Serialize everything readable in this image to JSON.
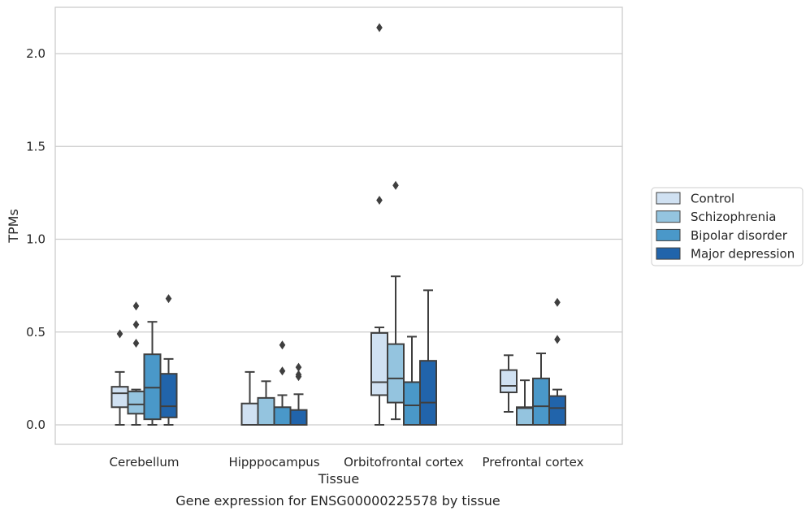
{
  "chart_data": {
    "type": "box",
    "caption": "Gene expression for ENSG00000225578 by tissue",
    "xlabel": "Tissue",
    "ylabel": "TPMs",
    "ylim": [
      -0.1,
      2.25
    ],
    "yticks": [
      0.0,
      0.5,
      1.0,
      1.5,
      2.0
    ],
    "ytick_labels": [
      "0.0",
      "0.5",
      "1.0",
      "1.5",
      "2.0"
    ],
    "grid": "horizontal",
    "legend_position": "right",
    "categories": [
      "Cerebellum",
      "Hipppocampus",
      "Orbitofrontal cortex",
      "Prefrontal cortex"
    ],
    "series": [
      {
        "name": "Control",
        "color": "#d0e1f2",
        "boxes": [
          {
            "whislo": 0.0,
            "q1": 0.095,
            "med": 0.17,
            "q3": 0.205,
            "whishi": 0.285,
            "fliers": [
              0.49
            ]
          },
          {
            "whislo": 0.0,
            "q1": 0.0,
            "med": 0.0,
            "q3": 0.115,
            "whishi": 0.285,
            "fliers": []
          },
          {
            "whislo": 0.0,
            "q1": 0.16,
            "med": 0.23,
            "q3": 0.495,
            "whishi": 0.525,
            "fliers": [
              1.21,
              2.14
            ]
          },
          {
            "whislo": 0.07,
            "q1": 0.175,
            "med": 0.21,
            "q3": 0.295,
            "whishi": 0.375,
            "fliers": []
          }
        ]
      },
      {
        "name": "Schizophrenia",
        "color": "#94c4df",
        "boxes": [
          {
            "whislo": 0.0,
            "q1": 0.06,
            "med": 0.11,
            "q3": 0.18,
            "whishi": 0.19,
            "fliers": [
              0.44,
              0.54,
              0.64
            ]
          },
          {
            "whislo": 0.0,
            "q1": 0.0,
            "med": 0.0,
            "q3": 0.145,
            "whishi": 0.235,
            "fliers": []
          },
          {
            "whislo": 0.03,
            "q1": 0.12,
            "med": 0.25,
            "q3": 0.435,
            "whishi": 0.8,
            "fliers": [
              1.29
            ]
          },
          {
            "whislo": 0.0,
            "q1": 0.0,
            "med": 0.09,
            "q3": 0.095,
            "whishi": 0.24,
            "fliers": []
          }
        ]
      },
      {
        "name": "Bipolar disorder",
        "color": "#4a98c9",
        "boxes": [
          {
            "whislo": 0.0,
            "q1": 0.03,
            "med": 0.2,
            "q3": 0.38,
            "whishi": 0.555,
            "fliers": []
          },
          {
            "whislo": 0.0,
            "q1": 0.0,
            "med": 0.0,
            "q3": 0.095,
            "whishi": 0.16,
            "fliers": [
              0.29,
              0.43
            ]
          },
          {
            "whislo": 0.0,
            "q1": 0.0,
            "med": 0.105,
            "q3": 0.23,
            "whishi": 0.475,
            "fliers": []
          },
          {
            "whislo": 0.0,
            "q1": 0.0,
            "med": 0.1,
            "q3": 0.25,
            "whishi": 0.385,
            "fliers": []
          }
        ]
      },
      {
        "name": "Major depression",
        "color": "#2164ab",
        "boxes": [
          {
            "whislo": 0.0,
            "q1": 0.04,
            "med": 0.1,
            "q3": 0.275,
            "whishi": 0.355,
            "fliers": [
              0.68
            ]
          },
          {
            "whislo": 0.0,
            "q1": 0.0,
            "med": 0.0,
            "q3": 0.08,
            "whishi": 0.165,
            "fliers": [
              0.26,
              0.27,
              0.31
            ]
          },
          {
            "whislo": 0.0,
            "q1": 0.0,
            "med": 0.12,
            "q3": 0.345,
            "whishi": 0.725,
            "fliers": []
          },
          {
            "whislo": 0.0,
            "q1": 0.0,
            "med": 0.09,
            "q3": 0.155,
            "whishi": 0.19,
            "fliers": [
              0.46,
              0.66
            ]
          }
        ]
      }
    ]
  }
}
